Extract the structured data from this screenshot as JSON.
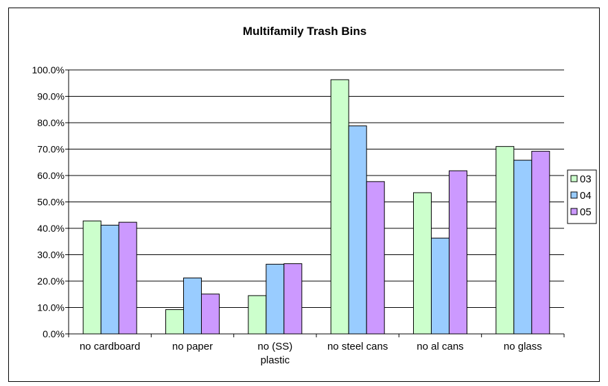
{
  "chart_data": {
    "type": "bar",
    "title": "Multifamily Trash Bins",
    "xlabel": "",
    "ylabel": "",
    "categories": [
      "no cardboard",
      "no paper",
      "no (SS) plastic",
      "no steel cans",
      "no al cans",
      "no glass"
    ],
    "category_lines": [
      [
        "no cardboard"
      ],
      [
        "no paper"
      ],
      [
        "no (SS)",
        "plastic"
      ],
      [
        "no steel cans"
      ],
      [
        "no al cans"
      ],
      [
        "no glass"
      ]
    ],
    "series": [
      {
        "name": "03",
        "color": "#ccffcc",
        "values": [
          42.8,
          9.2,
          14.5,
          96.3,
          53.5,
          71.0
        ]
      },
      {
        "name": "04",
        "color": "#99ccff",
        "values": [
          41.2,
          21.2,
          26.4,
          78.8,
          36.3,
          65.8
        ]
      },
      {
        "name": "05",
        "color": "#cc99ff",
        "values": [
          42.3,
          15.1,
          26.6,
          57.7,
          61.8,
          69.2
        ]
      }
    ],
    "ylim": [
      0,
      100
    ],
    "yticks": [
      "0.0%",
      "10.0%",
      "20.0%",
      "30.0%",
      "40.0%",
      "50.0%",
      "60.0%",
      "70.0%",
      "80.0%",
      "90.0%",
      "100.0%"
    ],
    "grid": true,
    "legend_position": "right"
  }
}
